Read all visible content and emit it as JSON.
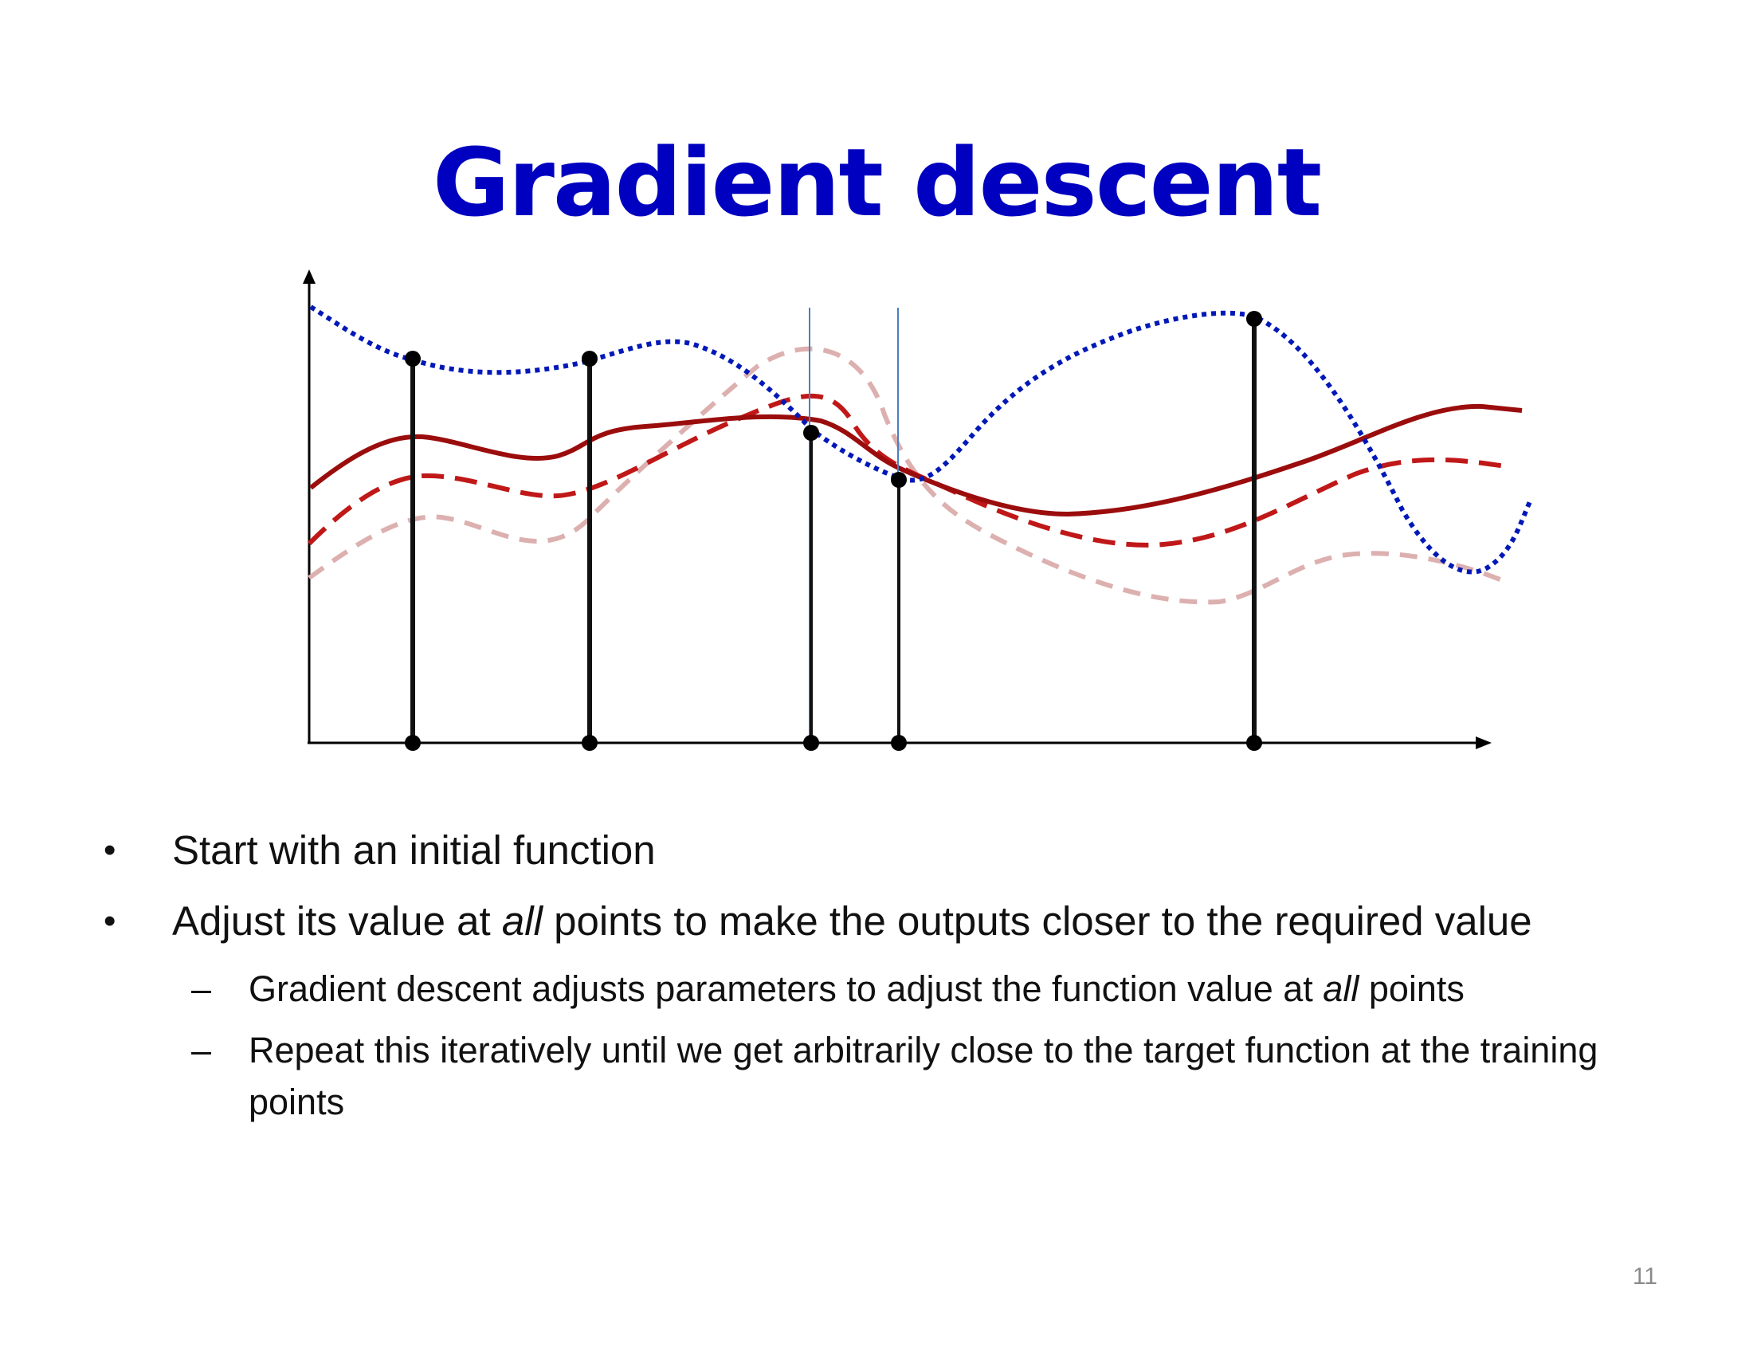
{
  "slide": {
    "title": "Gradient descent",
    "page_number": "11"
  },
  "bullets": [
    {
      "pre": "Start with an initial function",
      "emph": "",
      "post": ""
    },
    {
      "pre": "Adjust its value at ",
      "emph": "all",
      "post": " points to make the outputs closer to the required value"
    }
  ],
  "sub_bullets": [
    {
      "pre": "Gradient descent adjusts parameters to adjust the function value at ",
      "emph": "all",
      "post": " points"
    },
    {
      "pre": "Repeat this iteratively until we get arbitrarily close to the target function at the training points",
      "emph": "",
      "post": ""
    }
  ],
  "marks": {
    "bullet": "•",
    "dash": "–"
  },
  "colors": {
    "title": "#0000C0",
    "target_curve": "#0018B8",
    "current_curve": "#9B0D0D",
    "intermediate_curve": "#C01818",
    "initial_curve": "#DDB0B0",
    "sample_lines": "#111111",
    "thin_lines": "#4A7FC0"
  },
  "icons": {
    "axis_arrows": "arrow-icon",
    "sample_points": "dot-icon"
  }
}
